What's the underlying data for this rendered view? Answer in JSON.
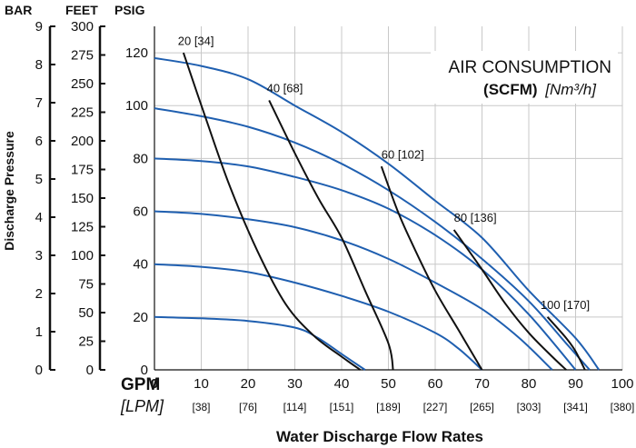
{
  "chart_data": {
    "type": "line",
    "title_line1": "AIR CONSUMPTION",
    "title_bold": "(SCFM)",
    "title_italic": "[Nm³/h]",
    "xlabel": "Water Discharge Flow Rates",
    "ylabel": "Discharge Pressure",
    "x_unit_label": "GPM",
    "x_alt_unit_label": "[LPM]",
    "x_ticks": [
      10,
      20,
      30,
      40,
      50,
      60,
      70,
      80,
      90,
      100
    ],
    "x_ticks_zero": "0",
    "x_alt_ticks": [
      "[38]",
      "[76]",
      "[114]",
      "[151]",
      "[189]",
      "[227]",
      "[265]",
      "[303]",
      "[341]",
      "[380]"
    ],
    "xlim": [
      0,
      100
    ],
    "y_axes": {
      "psig": {
        "label": "PSIG",
        "ticks": [
          0,
          20,
          40,
          60,
          80,
          100,
          120
        ],
        "lim": [
          0,
          130
        ]
      },
      "feet": {
        "label": "FEET",
        "ticks": [
          0,
          25,
          50,
          75,
          100,
          125,
          150,
          175,
          200,
          225,
          250,
          275,
          300
        ],
        "lim": [
          0,
          300
        ]
      },
      "bar": {
        "label": "BAR",
        "ticks": [
          0,
          1,
          2,
          3,
          4,
          5,
          6,
          7,
          8,
          9
        ],
        "lim": [
          0,
          9
        ]
      }
    },
    "pressure_curves": [
      {
        "name": "120 psig",
        "points": [
          [
            0,
            118
          ],
          [
            10,
            115
          ],
          [
            20,
            110
          ],
          [
            30,
            100
          ],
          [
            40,
            90
          ],
          [
            50,
            78
          ],
          [
            60,
            64
          ],
          [
            70,
            50
          ],
          [
            80,
            30
          ],
          [
            90,
            12
          ],
          [
            95,
            0
          ]
        ]
      },
      {
        "name": "100 psig",
        "points": [
          [
            0,
            99
          ],
          [
            10,
            96
          ],
          [
            20,
            92
          ],
          [
            30,
            86
          ],
          [
            40,
            78
          ],
          [
            50,
            68
          ],
          [
            60,
            56
          ],
          [
            70,
            42
          ],
          [
            80,
            26
          ],
          [
            88,
            10
          ],
          [
            93,
            0
          ]
        ]
      },
      {
        "name": "80 psig",
        "points": [
          [
            0,
            80
          ],
          [
            10,
            79
          ],
          [
            20,
            77
          ],
          [
            30,
            73
          ],
          [
            40,
            68
          ],
          [
            50,
            61
          ],
          [
            60,
            51
          ],
          [
            70,
            38
          ],
          [
            80,
            21
          ],
          [
            90,
            0
          ]
        ]
      },
      {
        "name": "60 psig",
        "points": [
          [
            0,
            60
          ],
          [
            10,
            59
          ],
          [
            20,
            57
          ],
          [
            30,
            54
          ],
          [
            40,
            49
          ],
          [
            50,
            42
          ],
          [
            60,
            33
          ],
          [
            70,
            23
          ],
          [
            78,
            12
          ],
          [
            85,
            0
          ]
        ]
      },
      {
        "name": "40 psig",
        "points": [
          [
            0,
            40
          ],
          [
            10,
            39
          ],
          [
            20,
            37
          ],
          [
            30,
            33
          ],
          [
            40,
            28
          ],
          [
            50,
            22
          ],
          [
            60,
            14
          ],
          [
            65,
            8
          ],
          [
            70,
            0
          ]
        ]
      },
      {
        "name": "20 psig",
        "points": [
          [
            0,
            20
          ],
          [
            10,
            19.5
          ],
          [
            20,
            18.5
          ],
          [
            30,
            16
          ],
          [
            35,
            12
          ],
          [
            40,
            6
          ],
          [
            45,
            0
          ]
        ]
      }
    ],
    "air_curves": [
      {
        "label": "20 [34]",
        "points": [
          [
            6.2,
            120
          ],
          [
            11,
            95
          ],
          [
            16,
            70
          ],
          [
            22,
            45
          ],
          [
            28,
            25
          ],
          [
            34,
            13
          ],
          [
            40,
            5
          ],
          [
            44,
            0
          ]
        ],
        "label_at": [
          5,
          123
        ]
      },
      {
        "label": "40 [68]",
        "points": [
          [
            24.5,
            102
          ],
          [
            30,
            82
          ],
          [
            35,
            65
          ],
          [
            40,
            50
          ],
          [
            45,
            30
          ],
          [
            50,
            10
          ],
          [
            51,
            0
          ]
        ],
        "label_at": [
          24,
          105
        ]
      },
      {
        "label": "60 [102]",
        "points": [
          [
            48.5,
            77
          ],
          [
            52,
            60
          ],
          [
            55,
            48
          ],
          [
            60,
            30
          ],
          [
            65,
            15
          ],
          [
            70,
            0
          ]
        ],
        "label_at": [
          48.5,
          80
        ]
      },
      {
        "label": "80 [136]",
        "points": [
          [
            64,
            53
          ],
          [
            70,
            38
          ],
          [
            75,
            25
          ],
          [
            80,
            14
          ],
          [
            85,
            5
          ],
          [
            88,
            0
          ]
        ],
        "label_at": [
          64,
          56
        ]
      },
      {
        "label": "100 [170]",
        "points": [
          [
            84,
            20
          ],
          [
            88,
            12
          ],
          [
            90,
            7
          ],
          [
            92,
            0
          ]
        ],
        "label_at": [
          82.5,
          23
        ]
      }
    ],
    "colors": {
      "pressure_curve": "#1f5fb0",
      "air_curve": "#111111"
    },
    "grid": true
  }
}
